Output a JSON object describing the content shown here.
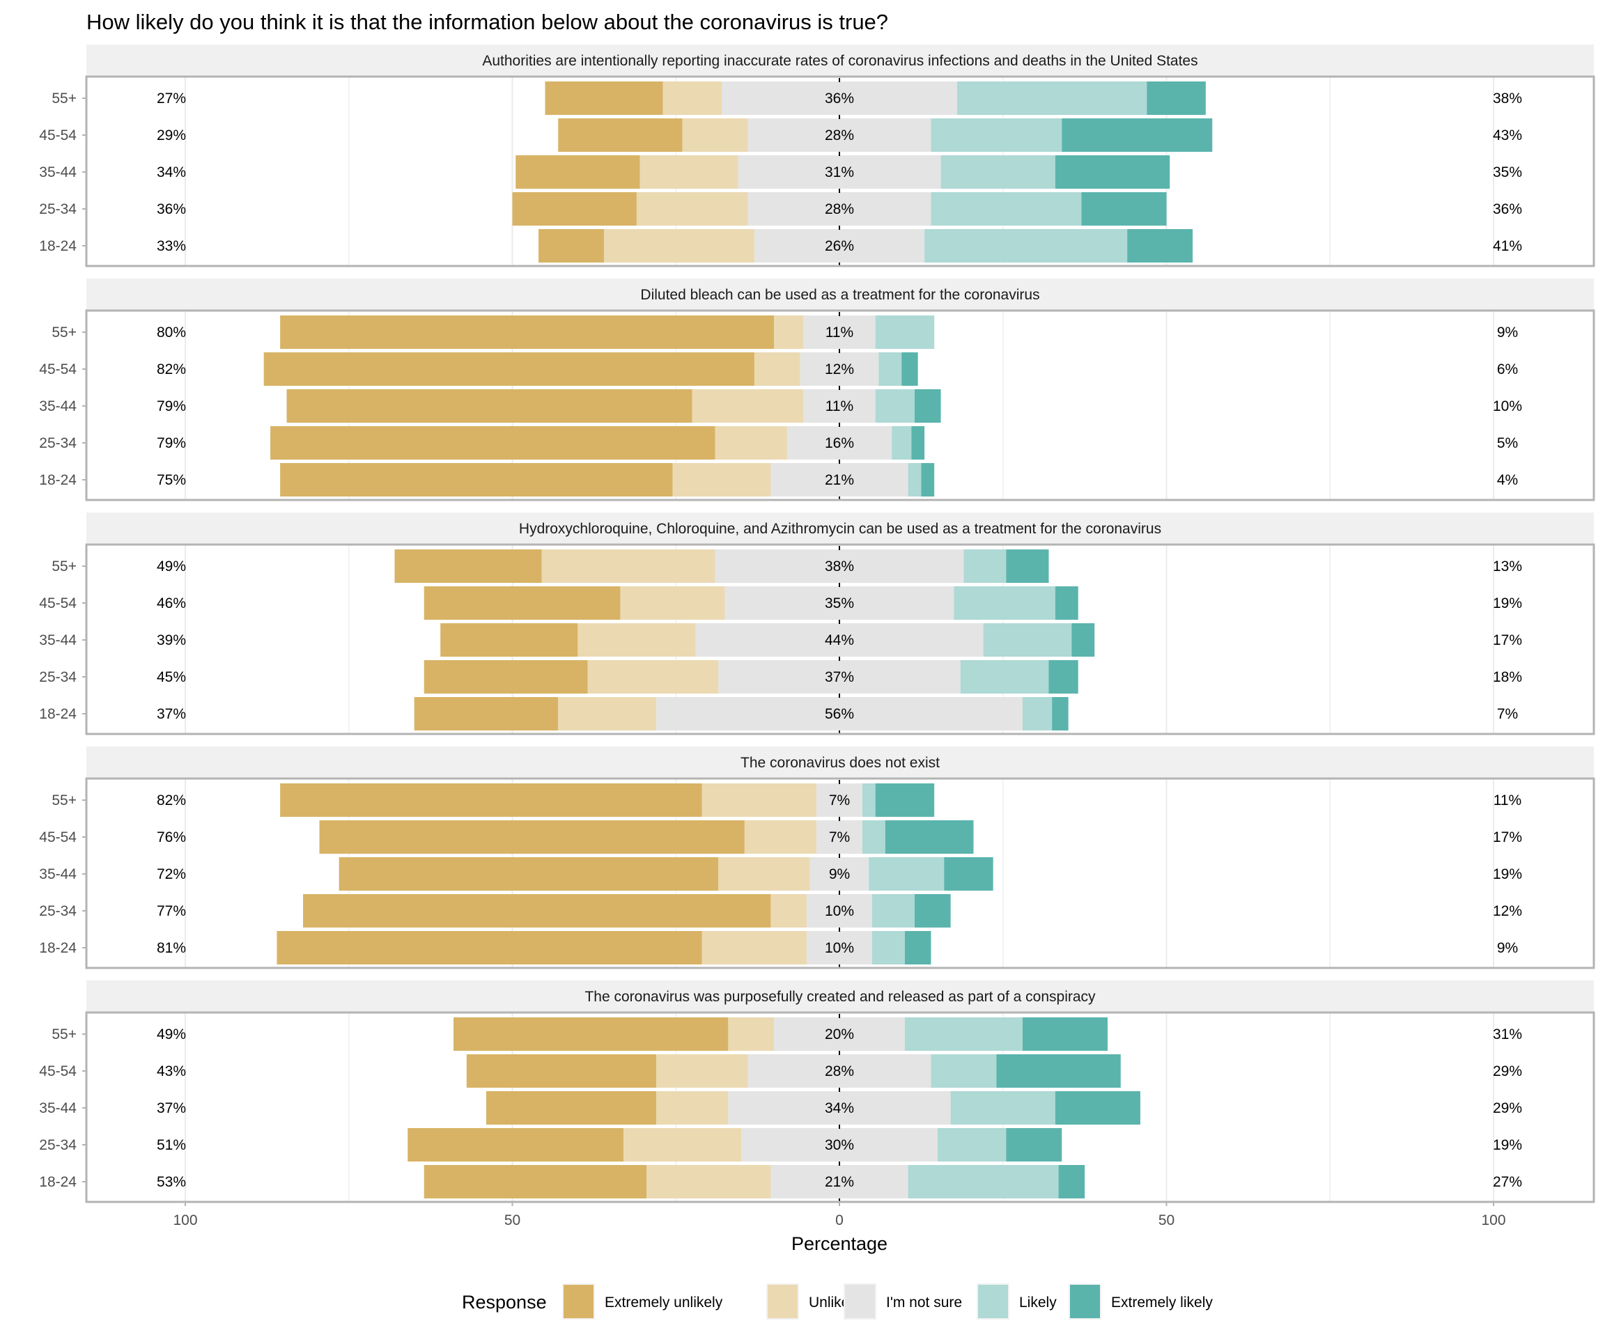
{
  "chart_data": {
    "type": "bar",
    "orientation": "horizontal",
    "stacked": "diverging",
    "title": "How likely do you think it is that the information below about the coronavirus is true?",
    "xlabel": "Percentage",
    "ylabel": "",
    "xlim": [
      -100,
      100
    ],
    "x_ticks": [
      -100,
      -50,
      0,
      50,
      100
    ],
    "x_tick_labels": [
      "100",
      "50",
      "0",
      "50",
      "100"
    ],
    "grid": true,
    "legend": {
      "title": "Response",
      "position": "bottom",
      "entries": [
        "Extremely unlikely",
        "Unlikely",
        "I'm not sure",
        "Likely",
        "Extremely likely"
      ]
    },
    "colors": {
      "Extremely unlikely": "#d8b365",
      "Unlikely": "#ebd9b2",
      "I'm not sure": "#e4e4e4",
      "Likely": "#aed9d5",
      "Extremely likely": "#5ab4ac"
    },
    "categories": [
      "55+",
      "45-54",
      "35-44",
      "25-34",
      "18-24"
    ],
    "panels": [
      {
        "title": "Authorities are intentionally reporting inaccurate rates of coronavirus infections and deaths in the United States",
        "rows": [
          {
            "age": "55+",
            "values": [
              18,
              9,
              36,
              29,
              9
            ],
            "left_label": "27%",
            "center_label": "36%",
            "right_label": "38%"
          },
          {
            "age": "45-54",
            "values": [
              19,
              10,
              28,
              20,
              23
            ],
            "left_label": "29%",
            "center_label": "28%",
            "right_label": "43%"
          },
          {
            "age": "35-44",
            "values": [
              19,
              15,
              31,
              17.5,
              17.5
            ],
            "left_label": "34%",
            "center_label": "31%",
            "right_label": "35%"
          },
          {
            "age": "25-34",
            "values": [
              19,
              17,
              28,
              23,
              13
            ],
            "left_label": "36%",
            "center_label": "28%",
            "right_label": "36%"
          },
          {
            "age": "18-24",
            "values": [
              10,
              23,
              26,
              31,
              10
            ],
            "left_label": "33%",
            "center_label": "26%",
            "right_label": "41%"
          }
        ]
      },
      {
        "title": "Diluted bleach can be used as a treatment for the coronavirus",
        "rows": [
          {
            "age": "55+",
            "values": [
              75.5,
              4.5,
              11,
              9,
              0
            ],
            "left_label": "80%",
            "center_label": "11%",
            "right_label": "9%"
          },
          {
            "age": "45-54",
            "values": [
              75,
              7,
              12,
              3.5,
              2.5
            ],
            "left_label": "82%",
            "center_label": "12%",
            "right_label": "6%"
          },
          {
            "age": "35-44",
            "values": [
              62,
              17,
              11,
              6,
              4
            ],
            "left_label": "79%",
            "center_label": "11%",
            "right_label": "10%"
          },
          {
            "age": "25-34",
            "values": [
              68,
              11,
              16,
              3,
              2
            ],
            "left_label": "79%",
            "center_label": "16%",
            "right_label": "5%"
          },
          {
            "age": "18-24",
            "values": [
              60,
              15,
              21,
              2,
              2
            ],
            "left_label": "75%",
            "center_label": "21%",
            "right_label": "4%"
          }
        ]
      },
      {
        "title": "Hydroxychloroquine, Chloroquine, and Azithromycin can be used as a treatment for the coronavirus",
        "rows": [
          {
            "age": "55+",
            "values": [
              22.5,
              26.5,
              38,
              6.5,
              6.5
            ],
            "left_label": "49%",
            "center_label": "38%",
            "right_label": "13%"
          },
          {
            "age": "45-54",
            "values": [
              30,
              16,
              35,
              15.5,
              3.5
            ],
            "left_label": "46%",
            "center_label": "35%",
            "right_label": "19%"
          },
          {
            "age": "35-44",
            "values": [
              21,
              18,
              44,
              13.5,
              3.5
            ],
            "left_label": "39%",
            "center_label": "44%",
            "right_label": "17%"
          },
          {
            "age": "25-34",
            "values": [
              25,
              20,
              37,
              13.5,
              4.5
            ],
            "left_label": "45%",
            "center_label": "37%",
            "right_label": "18%"
          },
          {
            "age": "18-24",
            "values": [
              22,
              15,
              56,
              4.5,
              2.5
            ],
            "left_label": "37%",
            "center_label": "56%",
            "right_label": "7%"
          }
        ]
      },
      {
        "title": "The coronavirus does not exist",
        "rows": [
          {
            "age": "55+",
            "values": [
              64.5,
              17.5,
              7,
              2,
              9
            ],
            "left_label": "82%",
            "center_label": "7%",
            "right_label": "11%"
          },
          {
            "age": "45-54",
            "values": [
              65,
              11,
              7,
              3.5,
              13.5
            ],
            "left_label": "76%",
            "center_label": "7%",
            "right_label": "17%"
          },
          {
            "age": "35-44",
            "values": [
              58,
              14,
              9,
              11.5,
              7.5
            ],
            "left_label": "72%",
            "center_label": "9%",
            "right_label": "19%"
          },
          {
            "age": "25-34",
            "values": [
              71.5,
              5.5,
              10,
              6.5,
              5.5
            ],
            "left_label": "77%",
            "center_label": "10%",
            "right_label": "12%"
          },
          {
            "age": "18-24",
            "values": [
              65,
              16,
              10,
              5,
              4
            ],
            "left_label": "81%",
            "center_label": "10%",
            "right_label": "9%"
          }
        ]
      },
      {
        "title": "The coronavirus was purposefully created and released as part of a conspiracy",
        "rows": [
          {
            "age": "55+",
            "values": [
              42,
              7,
              20,
              18,
              13
            ],
            "left_label": "49%",
            "center_label": "20%",
            "right_label": "31%"
          },
          {
            "age": "45-54",
            "values": [
              29,
              14,
              28,
              10,
              19
            ],
            "left_label": "43%",
            "center_label": "28%",
            "right_label": "29%"
          },
          {
            "age": "35-44",
            "values": [
              26,
              11,
              34,
              16,
              13
            ],
            "left_label": "37%",
            "center_label": "34%",
            "right_label": "29%"
          },
          {
            "age": "25-34",
            "values": [
              33,
              18,
              30,
              10.5,
              8.5
            ],
            "left_label": "51%",
            "center_label": "30%",
            "right_label": "19%"
          },
          {
            "age": "18-24",
            "values": [
              34,
              19,
              21,
              23,
              4
            ],
            "left_label": "53%",
            "center_label": "21%",
            "right_label": "27%"
          }
        ]
      }
    ]
  }
}
